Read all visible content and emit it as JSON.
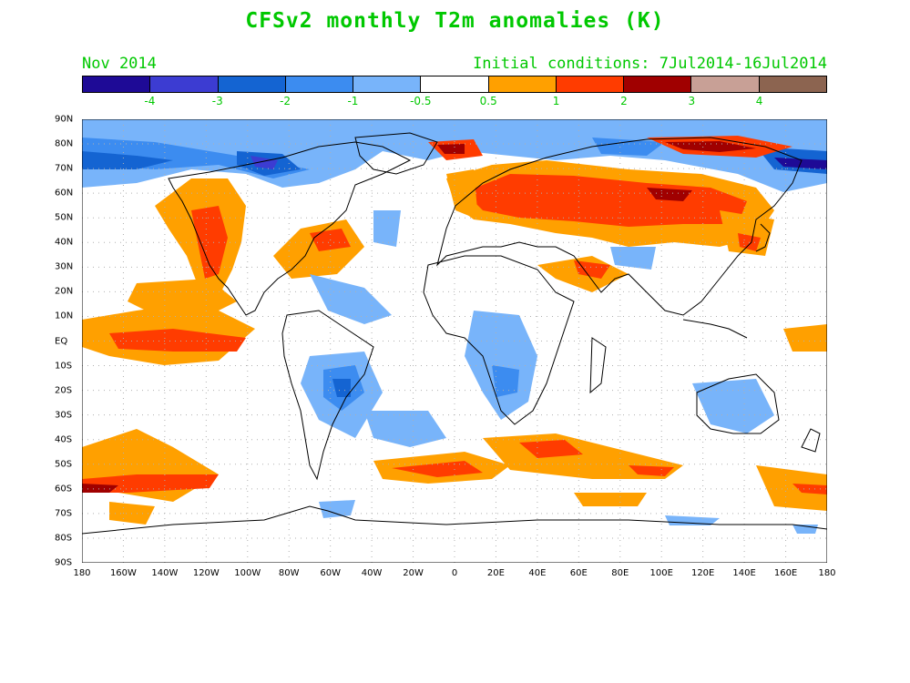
{
  "title": "CFSv2 monthly T2m anomalies (K)",
  "subtitle_left": "Nov 2014",
  "subtitle_right": "Initial conditions: 7Jul2014-16Jul2014",
  "colorbar": {
    "colors": [
      "#1e0a96",
      "#3c3cd2",
      "#1464d2",
      "#3c8cf0",
      "#78b4fa",
      "#ffffff",
      "#ffa000",
      "#ff3c00",
      "#a00000",
      "#c8a096",
      "#8c6450"
    ],
    "labels": [
      "-4",
      "-3",
      "-2",
      "-1",
      "-0.5",
      "0.5",
      "1",
      "2",
      "3",
      "4"
    ]
  },
  "lat_labels": [
    "90N",
    "80N",
    "70N",
    "60N",
    "50N",
    "40N",
    "30N",
    "20N",
    "10N",
    "EQ",
    "10S",
    "20S",
    "30S",
    "40S",
    "50S",
    "60S",
    "70S",
    "80S",
    "90S"
  ],
  "lon_labels": [
    "180",
    "160W",
    "140W",
    "120W",
    "100W",
    "80W",
    "60W",
    "40W",
    "20W",
    "0",
    "20E",
    "40E",
    "60E",
    "80E",
    "100E",
    "120E",
    "140E",
    "160E",
    "180"
  ]
}
